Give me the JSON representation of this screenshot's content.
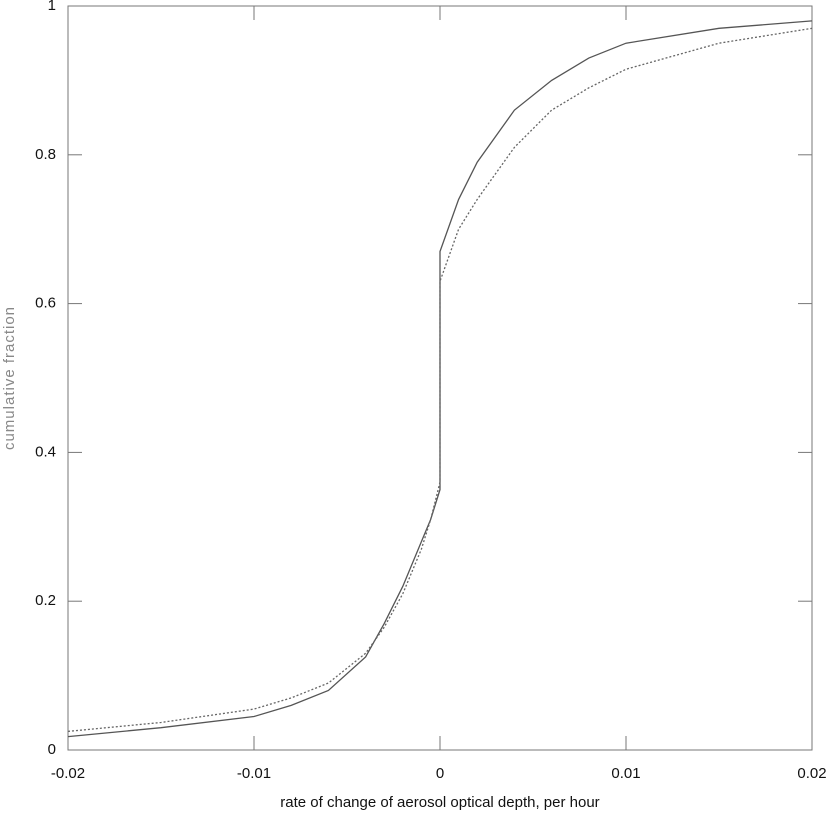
{
  "chart_data": {
    "type": "line",
    "xlabel": "rate of change of aerosol optical depth, per hour",
    "ylabel": "cumulative fraction",
    "x": [
      -0.02,
      -0.015,
      -0.01,
      -0.008,
      -0.006,
      -0.004,
      -0.003,
      -0.002,
      -0.001,
      -0.0005,
      0,
      0,
      0.001,
      0.002,
      0.004,
      0.006,
      0.008,
      0.01,
      0.015,
      0.02
    ],
    "series": [
      {
        "color": "#555555",
        "dashed": false,
        "values": [
          0.018,
          0.03,
          0.045,
          0.06,
          0.08,
          0.125,
          0.17,
          0.22,
          0.28,
          0.31,
          0.35,
          0.67,
          0.74,
          0.79,
          0.86,
          0.9,
          0.93,
          0.95,
          0.97,
          0.98
        ]
      },
      {
        "color": "#666666",
        "dashed": true,
        "values": [
          0.025,
          0.037,
          0.055,
          0.07,
          0.09,
          0.13,
          0.165,
          0.21,
          0.27,
          0.31,
          0.36,
          0.63,
          0.7,
          0.74,
          0.81,
          0.86,
          0.89,
          0.915,
          0.95,
          0.97
        ]
      }
    ],
    "xlim": [
      -0.02,
      0.02
    ],
    "xticks": [
      -0.02,
      -0.01,
      0,
      0.01,
      0.02
    ],
    "ylim": [
      0,
      1
    ],
    "yticks": [
      0,
      0.2,
      0.4,
      0.6,
      0.8,
      1
    ]
  }
}
